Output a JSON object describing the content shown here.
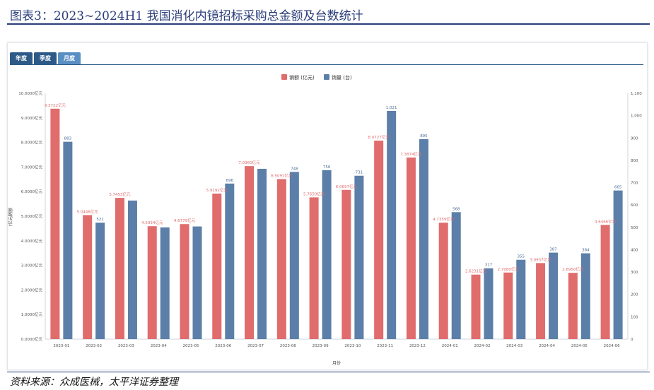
{
  "page_title": "图表3：2023~2024H1 我国消化内镜招标采购总金额及台数统计",
  "source": "资料来源：众成医械，太平洋证券整理",
  "tabs": [
    {
      "label": "年度",
      "active": false
    },
    {
      "label": "季度",
      "active": false
    },
    {
      "label": "月度",
      "active": true
    }
  ],
  "colors": {
    "amount": "#e06c6c",
    "units": "#5b7fa8",
    "title": "#2a3d7a",
    "tab": "#2d5a87",
    "tab_active": "#5a8fc4"
  },
  "chart_data": {
    "type": "bar",
    "categories": [
      "2023-01",
      "2023-02",
      "2023-03",
      "2023-04",
      "2023-05",
      "2023-06",
      "2023-07",
      "2023-08",
      "2023-09",
      "2023-10",
      "2023-11",
      "2023-12",
      "2024-01",
      "2024-02",
      "2024-03",
      "2024-04",
      "2024-05",
      "2024-06"
    ],
    "series": [
      {
        "name": "销额 (亿元)",
        "axis": "left",
        "unit_suffix": "亿元",
        "values": [
          9.3722,
          5.0446,
          5.7453,
          4.5934,
          4.6779,
          5.9192,
          7.036,
          6.5091,
          5.765,
          6.0697,
          8.0727,
          7.3874,
          4.7359,
          2.6231,
          2.708,
          3.0937,
          2.695,
          4.6466
        ],
        "labels": [
          "9.3722亿元",
          "5.0446亿元",
          "5.7453亿元",
          "4.5934亿元",
          "4.6779亿元",
          "5.9192亿元",
          "7.0360亿元",
          "6.5091亿元",
          "5.7650亿元",
          "6.0697亿元",
          "8.0727亿元",
          "7.3874亿元",
          "4.7359亿元",
          "2.6231亿元",
          "2.7080亿元",
          "3.0937亿元",
          "2.6950亿元",
          "4.6466亿元"
        ]
      },
      {
        "name": "销量 (台)",
        "axis": "right",
        "values": [
          883,
          521,
          620,
          500,
          504,
          696,
          762,
          748,
          756,
          731,
          1021,
          895,
          568,
          317,
          355,
          387,
          384,
          665
        ],
        "labels": [
          "883",
          "521",
          "",
          "",
          "",
          "696",
          "",
          "748",
          "756",
          "731",
          "1,021",
          "895",
          "568",
          "317",
          "355",
          "387",
          "384",
          "665"
        ]
      }
    ],
    "ylabel": "销额\n(亿元)",
    "xlabel": "月份",
    "y_left": {
      "min": 0,
      "max": 10,
      "ticks": [
        "0.0000亿元",
        "1.0000亿元",
        "2.0000亿元",
        "3.0000亿元",
        "4.0000亿元",
        "5.0000亿元",
        "6.0000亿元",
        "7.0000亿元",
        "8.0000亿元",
        "9.0000亿元",
        "10.0000亿元"
      ]
    },
    "y_right": {
      "min": 0,
      "max": 1100,
      "ticks": [
        "0",
        "100",
        "200",
        "300",
        "400",
        "500",
        "600",
        "700",
        "800",
        "900",
        "1,000",
        "1,100"
      ]
    },
    "legend_position": "top-center",
    "grid": false
  }
}
